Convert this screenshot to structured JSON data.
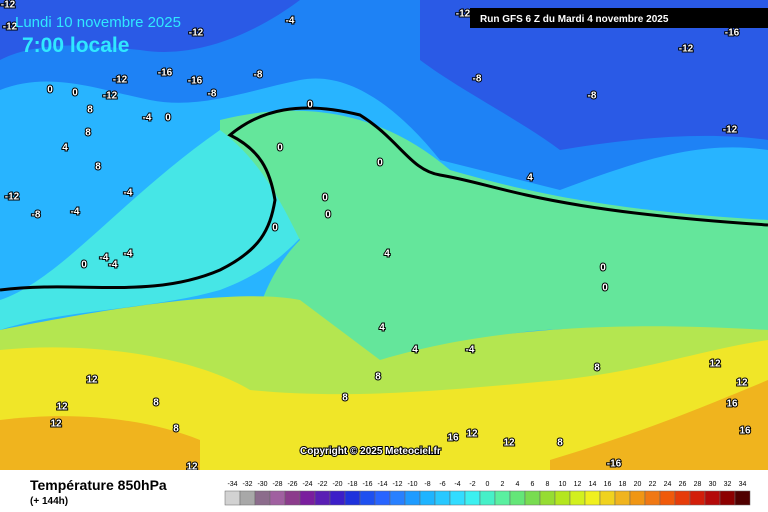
{
  "header": {
    "date": "Lundi 10 novembre 2025",
    "time": "7:00 locale",
    "run": "Run GFS 6 Z du Mardi 4 novembre 2025"
  },
  "copyright": "Copyright © 2025 Meteociel.fr",
  "footer": {
    "title": "Température 850hPa",
    "lead": "(+ 144h)"
  },
  "contour_labels": [
    -12,
    -12,
    -4,
    -12,
    -12,
    -16,
    -12,
    -16,
    -12,
    -16,
    -12,
    0,
    0,
    -8,
    -8,
    -8,
    -8,
    -12,
    0,
    -4,
    0,
    8,
    8,
    8,
    4,
    0,
    0,
    -4,
    -12,
    -8,
    -4,
    0,
    0,
    0,
    4,
    0,
    0,
    4,
    -4,
    -4,
    0,
    -4,
    4,
    4,
    -4,
    8,
    8,
    12,
    8,
    12,
    12,
    8,
    12,
    16,
    12,
    8,
    12,
    12,
    16,
    16,
    12,
    -16,
    8
  ],
  "colorbar": [
    {
      "value": -34,
      "color": "#d2d2d2"
    },
    {
      "value": -32,
      "color": "#a8a8a8"
    },
    {
      "value": -30,
      "color": "#8c6c8c"
    },
    {
      "value": -28,
      "color": "#a060a0"
    },
    {
      "value": -26,
      "color": "#8c3c8c"
    },
    {
      "value": -24,
      "color": "#7a1e9e"
    },
    {
      "value": -22,
      "color": "#5a1eb4"
    },
    {
      "value": -20,
      "color": "#3c1ec8"
    },
    {
      "value": -18,
      "color": "#1e32dc"
    },
    {
      "value": -16,
      "color": "#1e50f0"
    },
    {
      "value": -14,
      "color": "#2864ff"
    },
    {
      "value": -12,
      "color": "#2880ff"
    },
    {
      "value": -10,
      "color": "#1e9bff"
    },
    {
      "value": -8,
      "color": "#1eb4ff"
    },
    {
      "value": -6,
      "color": "#28c8ff"
    },
    {
      "value": -4,
      "color": "#32dcff"
    },
    {
      "value": -2,
      "color": "#3cf0f0"
    },
    {
      "value": 0,
      "color": "#46f0c8"
    },
    {
      "value": 2,
      "color": "#5af0a0"
    },
    {
      "value": 4,
      "color": "#64e678"
    },
    {
      "value": 6,
      "color": "#78dc50"
    },
    {
      "value": 8,
      "color": "#96dc32"
    },
    {
      "value": 10,
      "color": "#b4e61e"
    },
    {
      "value": 12,
      "color": "#d2f01e"
    },
    {
      "value": 14,
      "color": "#f0f01e"
    },
    {
      "value": 16,
      "color": "#f0d21e"
    },
    {
      "value": 18,
      "color": "#f0b41e"
    },
    {
      "value": 20,
      "color": "#f09614"
    },
    {
      "value": 22,
      "color": "#f07814"
    },
    {
      "value": 24,
      "color": "#f05a0a"
    },
    {
      "value": 26,
      "color": "#e63c0a"
    },
    {
      "value": 28,
      "color": "#d21e0a"
    },
    {
      "value": 30,
      "color": "#b40a0a"
    },
    {
      "value": 32,
      "color": "#8c0000"
    },
    {
      "value": 34,
      "color": "#500000"
    }
  ]
}
